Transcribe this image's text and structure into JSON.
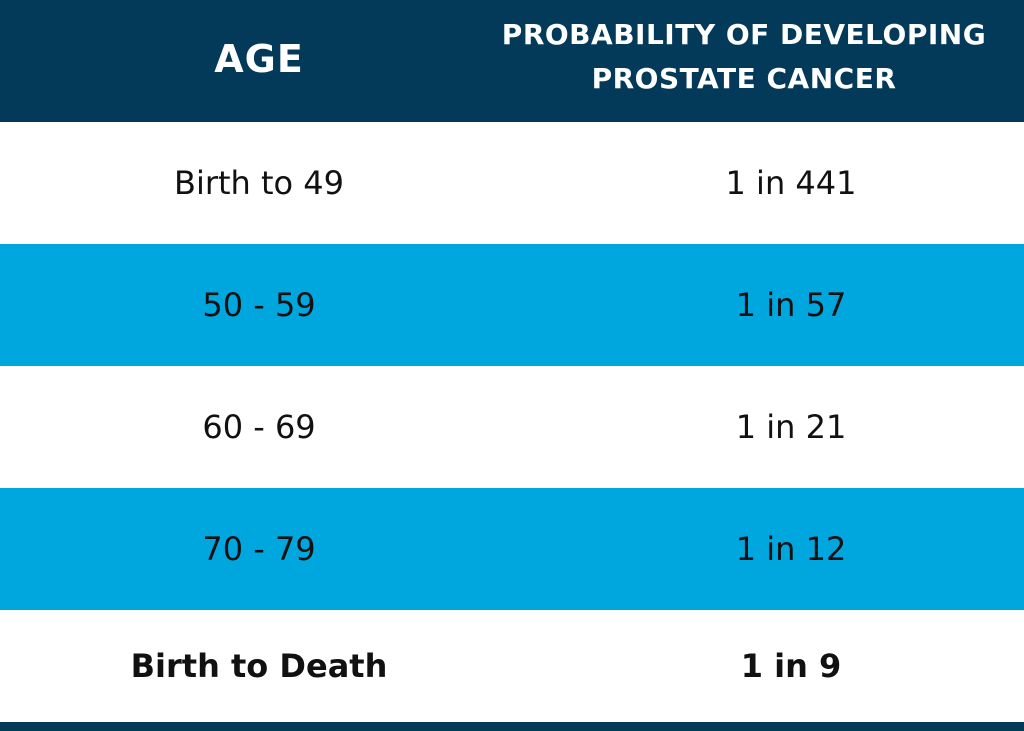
{
  "header": {
    "age_label": "AGE",
    "prob_line1": "PROBABILITY OF DEVELOPING",
    "prob_line2": "PROSTATE CANCER"
  },
  "rows": [
    {
      "age": "Birth to 49",
      "probability": "1 in 441"
    },
    {
      "age": "50 - 59",
      "probability": "1 in 57"
    },
    {
      "age": "60 - 69",
      "probability": "1 in 21"
    },
    {
      "age": "70 - 79",
      "probability": "1 in 12"
    },
    {
      "age": "Birth to Death",
      "probability": "1 in 9"
    }
  ],
  "colors": {
    "header_bg": "#033959",
    "stripe_blue": "#00a7df",
    "white": "#ffffff",
    "text_dark": "#111111"
  }
}
